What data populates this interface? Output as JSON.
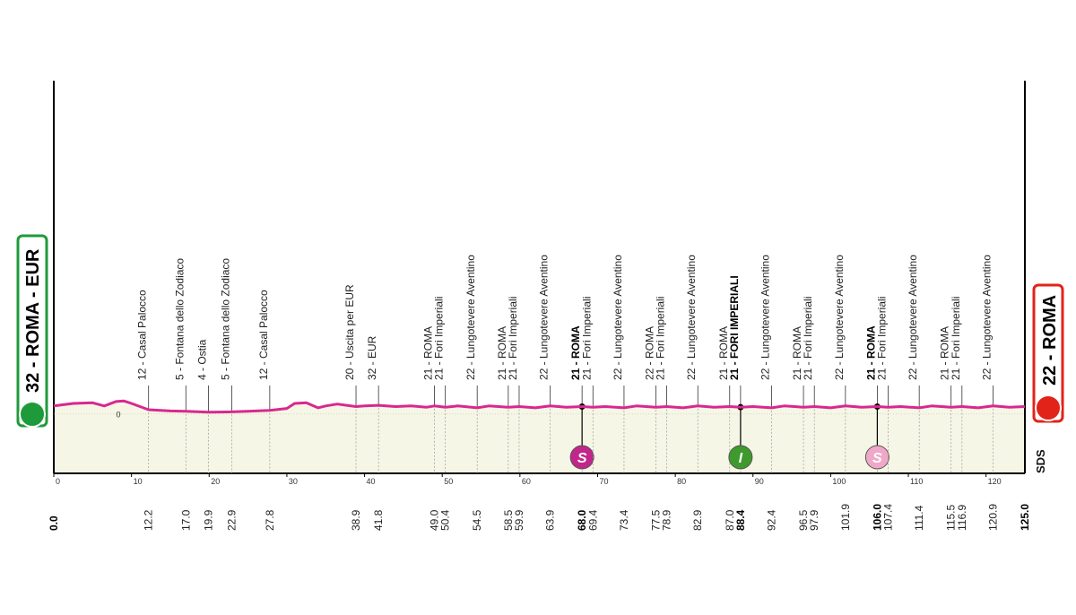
{
  "chart_data": {
    "type": "profile",
    "xlim": [
      0,
      125
    ],
    "xticks": [
      0,
      10,
      20,
      30,
      40,
      50,
      60,
      70,
      80,
      90,
      100,
      110,
      120
    ],
    "ylim": [
      -189,
      1063
    ],
    "yticks": [
      0
    ],
    "line_color": "#d8288f",
    "fill_color": "#f6f6e6",
    "start": {
      "km": {
        "value": 0,
        "label": "0.0"
      },
      "label": "32 - ROMA - EUR",
      "color": "#1f9a3a"
    },
    "finish": {
      "km": {
        "value": 125,
        "label": "125.0"
      },
      "label": "22 - ROMA",
      "color": "#e2231a"
    },
    "logo": "SDS",
    "profile": {
      "x": [
        0,
        2.5,
        5,
        6.5,
        8,
        9,
        10,
        12.2,
        15,
        17,
        19.9,
        22.9,
        25,
        27.8,
        30,
        31,
        32.5,
        34,
        35,
        36.5,
        38.9,
        40,
        41.8,
        44,
        46,
        48,
        49,
        50.4,
        52,
        54.5,
        56,
        58.5,
        59.9,
        62,
        63.9,
        66,
        68,
        69.4,
        71,
        73.4,
        75,
        77.5,
        78.9,
        81,
        82.9,
        85,
        87,
        88.4,
        90,
        92.4,
        94,
        96.5,
        97.9,
        100,
        101.9,
        104,
        106,
        107.4,
        109,
        111.4,
        113,
        115.5,
        116.9,
        119,
        120.9,
        123,
        125
      ],
      "values": [
        26,
        34,
        36,
        26,
        40,
        42,
        34,
        14,
        10,
        9,
        6,
        7,
        9,
        12,
        18,
        34,
        36,
        20,
        26,
        32,
        24,
        26,
        28,
        24,
        26,
        22,
        26,
        22,
        26,
        20,
        26,
        22,
        24,
        20,
        26,
        22,
        24,
        22,
        24,
        20,
        26,
        22,
        24,
        20,
        26,
        22,
        24,
        22,
        24,
        20,
        26,
        22,
        24,
        20,
        26,
        22,
        24,
        22,
        24,
        20,
        26,
        22,
        24,
        20,
        26,
        22,
        24
      ]
    },
    "waypoints": [
      {
        "km": 12.2,
        "label": "12 - Casal Palocco"
      },
      {
        "km": {
          "value": 17,
          "label": "17.0"
        },
        "label": "5 - Fontana dello Zodiaco"
      },
      {
        "km": 19.9,
        "label": "4 - Ostia"
      },
      {
        "km": 22.9,
        "label": "5 - Fontana dello Zodiaco"
      },
      {
        "km": 27.8,
        "label": "12 - Casal Palocco"
      },
      {
        "km": 38.9,
        "label": "20 - Uscita per EUR"
      },
      {
        "km": 41.8,
        "label": "32 - EUR"
      },
      {
        "km": {
          "value": 49,
          "label": "49.0"
        },
        "label": "21 - ROMA"
      },
      {
        "km": 50.4,
        "label": "21 - Fori Imperiali"
      },
      {
        "km": 54.5,
        "label": "22 - Lungotevere Aventino"
      },
      {
        "km": 58.5,
        "label": "21 - ROMA"
      },
      {
        "km": 59.9,
        "label": "21 - Fori Imperiali"
      },
      {
        "km": 63.9,
        "label": "22 - Lungotevere Aventino"
      },
      {
        "km": {
          "value": 68,
          "label": "68.0"
        },
        "label": "21 - ROMA",
        "highlight": true,
        "sprint": {
          "label": "S",
          "color": "#c2268a"
        }
      },
      {
        "km": 69.4,
        "label": "21 - Fori Imperiali"
      },
      {
        "km": 73.4,
        "label": "22 - Lungotevere Aventino"
      },
      {
        "km": 77.5,
        "label": "22 - ROMA"
      },
      {
        "km": 78.9,
        "label": "21 - Fori Imperiali"
      },
      {
        "km": 82.9,
        "label": "22 - Lungotevere Aventino"
      },
      {
        "km": {
          "value": 87,
          "label": "87.0"
        },
        "label": "21 - ROMA"
      },
      {
        "km": 88.4,
        "label": "21 - FORI IMPERIALI",
        "highlight": true,
        "sprint": {
          "label": "I",
          "color": "#3e9a2c"
        }
      },
      {
        "km": 92.4,
        "label": "22 - Lungotevere Aventino"
      },
      {
        "km": 96.5,
        "label": "21 - ROMA"
      },
      {
        "km": 97.9,
        "label": "21 - Fori Imperiali"
      },
      {
        "km": 101.9,
        "label": "22 - Lungotevere Aventino"
      },
      {
        "km": {
          "value": 106,
          "label": "106.0"
        },
        "label": "21 - ROMA",
        "highlight": true,
        "sprint": {
          "label": "S",
          "color": "#f0a8c8"
        }
      },
      {
        "km": 107.4,
        "label": "21 - Fori Imperiali"
      },
      {
        "km": 111.4,
        "label": "22 - Lungotevere Aventino"
      },
      {
        "km": 115.5,
        "label": "21 - ROMA"
      },
      {
        "km": 116.9,
        "label": "21 - Fori Imperiali"
      },
      {
        "km": 120.9,
        "label": "22 - Lungotevere Aventino"
      }
    ]
  }
}
